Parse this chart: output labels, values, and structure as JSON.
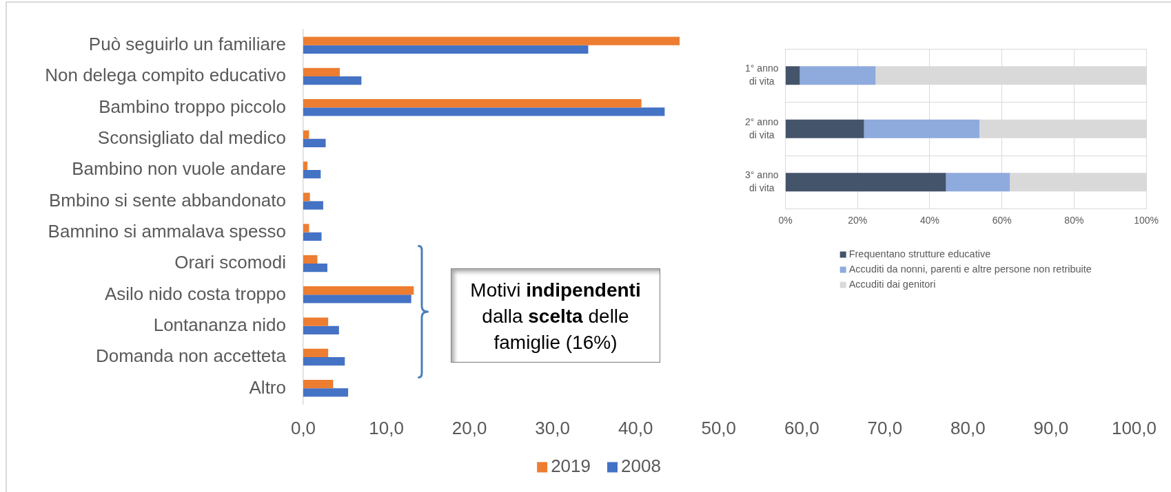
{
  "chart_data": [
    {
      "type": "bar",
      "orientation": "horizontal",
      "categories": [
        "Può seguirlo un familiare",
        "Non delega compito educativo",
        "Bambino troppo piccolo",
        "Sconsigliato dal medico",
        "Bambino non vuole andare",
        "Bmbino si sente abbandonato",
        "Bamnino si ammalava spesso",
        "Orari scomodi",
        "Asilo nido costa troppo",
        "Lontananza nido",
        "Domanda non accetteta",
        "Altro"
      ],
      "series": [
        {
          "name": "2019",
          "color": "#ed7d31",
          "values": [
            45.3,
            4.4,
            40.7,
            0.7,
            0.5,
            0.8,
            0.7,
            1.7,
            13.3,
            3.0,
            3.0,
            3.6
          ]
        },
        {
          "name": "2008",
          "color": "#4472c4",
          "values": [
            34.3,
            7.0,
            43.5,
            2.7,
            2.1,
            2.4,
            2.2,
            2.9,
            13.0,
            4.3,
            5.0,
            5.4
          ]
        }
      ],
      "xlim": [
        0,
        100
      ],
      "xticks": [
        {
          "value": 0,
          "label": "0,0"
        },
        {
          "value": 10,
          "label": "10,0"
        },
        {
          "value": 20,
          "label": "20,0"
        },
        {
          "value": 30,
          "label": "30,0"
        },
        {
          "value": 40,
          "label": "40,0"
        },
        {
          "value": 50,
          "label": "50,0"
        },
        {
          "value": 60,
          "label": "60,0"
        },
        {
          "value": 70,
          "label": "70,0"
        },
        {
          "value": 80,
          "label": "80,0"
        },
        {
          "value": 90,
          "label": "90,0"
        },
        {
          "value": 100,
          "label": "100,0"
        }
      ],
      "legend": "bottom",
      "annotations": [
        "Motivi indipendenti dalla scelta delle famiglie (16%)"
      ]
    },
    {
      "type": "bar",
      "orientation": "horizontal",
      "stacked": true,
      "categories": [
        "1° anno di vita",
        "2° anno di vita",
        "3° anno di vita"
      ],
      "series": [
        {
          "name": "Frequentano strutture educative",
          "color": "#44546a",
          "values": [
            4.0,
            21.8,
            44.5
          ]
        },
        {
          "name": "Accuditi da nonni, parenti e altre persone non retribuite",
          "color": "#8faadc",
          "values": [
            21.0,
            32.0,
            17.7
          ]
        },
        {
          "name": "Accuditi dai genitori",
          "color": "#d9d9d9",
          "values": [
            75.0,
            46.2,
            37.8
          ]
        }
      ],
      "xlim": [
        0,
        100
      ],
      "xticks": [
        {
          "value": 0,
          "label": "0%"
        },
        {
          "value": 20,
          "label": "20%"
        },
        {
          "value": 40,
          "label": "40%"
        },
        {
          "value": 60,
          "label": "60%"
        },
        {
          "value": 80,
          "label": "80%"
        },
        {
          "value": 100,
          "label": "100%"
        }
      ],
      "grid": true,
      "legend": "bottom"
    }
  ]
}
